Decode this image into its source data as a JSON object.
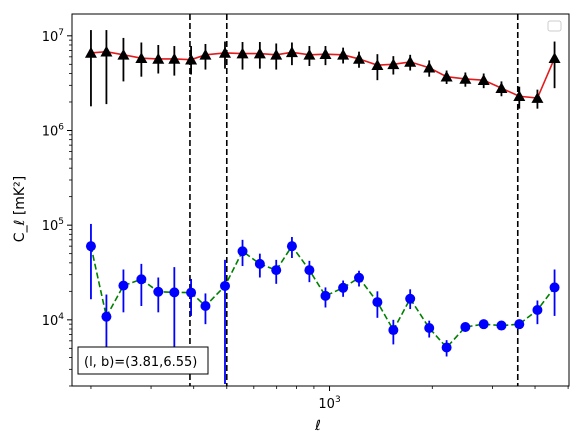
{
  "chart_data": {
    "type": "scatter",
    "title": "",
    "xlabel": "ℓ",
    "ylabel": "C_ℓ [mK²]",
    "x_scale": "log",
    "y_scale": "log",
    "xlim": [
      176,
      5030
    ],
    "ylim": [
      2000,
      17000000
    ],
    "x_tick_labels": [
      {
        "value": 1000,
        "base": "10",
        "exp": "3"
      }
    ],
    "y_tick_labels": [
      {
        "value": 10000,
        "base": "10",
        "exp": "4"
      },
      {
        "value": 100000,
        "base": "10",
        "exp": "5"
      },
      {
        "value": 1000000,
        "base": "10",
        "exp": "6"
      },
      {
        "value": 10000000,
        "base": "10",
        "exp": "7"
      }
    ],
    "grid": false,
    "legend": "empty box top-right",
    "vertical_lines": [
      390,
      500,
      3560
    ],
    "annotation": "(l, b)=(3.81,6.55)",
    "series": [
      {
        "marker": "triangle",
        "marker_color": "#000000",
        "line_color": "#e41a1c",
        "line_style": "solid",
        "points": [
          {
            "x": 200,
            "y": 6600000,
            "lo": 1800000,
            "hi": 11500000
          },
          {
            "x": 222,
            "y": 6800000,
            "lo": 1900000,
            "hi": 11500000
          },
          {
            "x": 249,
            "y": 6300000,
            "lo": 3300000,
            "hi": 9500000
          },
          {
            "x": 281,
            "y": 5800000,
            "lo": 3700000,
            "hi": 8500000
          },
          {
            "x": 315,
            "y": 5700000,
            "lo": 4000000,
            "hi": 8000000
          },
          {
            "x": 351,
            "y": 5700000,
            "lo": 3800000,
            "hi": 7800000
          },
          {
            "x": 393,
            "y": 5600000,
            "lo": 3900000,
            "hi": 7800000
          },
          {
            "x": 433,
            "y": 6300000,
            "lo": 4400000,
            "hi": 8200000
          },
          {
            "x": 494,
            "y": 6600000,
            "lo": 4500000,
            "hi": 8700000
          },
          {
            "x": 556,
            "y": 6500000,
            "lo": 4400000,
            "hi": 8600000
          },
          {
            "x": 625,
            "y": 6500000,
            "lo": 4500000,
            "hi": 8600000
          },
          {
            "x": 698,
            "y": 6300000,
            "lo": 4400000,
            "hi": 8300000
          },
          {
            "x": 776,
            "y": 6700000,
            "lo": 4900000,
            "hi": 8500000
          },
          {
            "x": 873,
            "y": 6300000,
            "lo": 4800000,
            "hi": 7800000
          },
          {
            "x": 973,
            "y": 6400000,
            "lo": 4900000,
            "hi": 7800000
          },
          {
            "x": 1096,
            "y": 6300000,
            "lo": 5100000,
            "hi": 7500000
          },
          {
            "x": 1220,
            "y": 5700000,
            "lo": 4600000,
            "hi": 6800000
          },
          {
            "x": 1381,
            "y": 4900000,
            "lo": 3400000,
            "hi": 6400000
          },
          {
            "x": 1538,
            "y": 5000000,
            "lo": 3900000,
            "hi": 6100000
          },
          {
            "x": 1723,
            "y": 5300000,
            "lo": 4300000,
            "hi": 6300000
          },
          {
            "x": 1959,
            "y": 4600000,
            "lo": 3700000,
            "hi": 5500000
          },
          {
            "x": 2203,
            "y": 3700000,
            "lo": 3100000,
            "hi": 4300000
          },
          {
            "x": 2500,
            "y": 3500000,
            "lo": 2900000,
            "hi": 4100000
          },
          {
            "x": 2829,
            "y": 3400000,
            "lo": 2800000,
            "hi": 4000000
          },
          {
            "x": 3189,
            "y": 2800000,
            "lo": 2300000,
            "hi": 3300000
          },
          {
            "x": 3597,
            "y": 2300000,
            "lo": 1700000,
            "hi": 2900000
          },
          {
            "x": 4065,
            "y": 2200000,
            "lo": 1700000,
            "hi": 2700000
          },
          {
            "x": 4563,
            "y": 5800000,
            "lo": 2800000,
            "hi": 8700000
          }
        ]
      },
      {
        "marker": "circle",
        "marker_color": "#0000ff",
        "line_color": "#008000",
        "line_style": "dashed",
        "points": [
          {
            "x": 200,
            "y": 60000,
            "lo": 16500,
            "hi": 103000
          },
          {
            "x": 222,
            "y": 10800,
            "lo": 2800,
            "hi": 18500
          },
          {
            "x": 249,
            "y": 23000,
            "lo": 12000,
            "hi": 34000
          },
          {
            "x": 281,
            "y": 26800,
            "lo": 14000,
            "hi": 39000
          },
          {
            "x": 315,
            "y": 19800,
            "lo": 12000,
            "hi": 28000
          },
          {
            "x": 351,
            "y": 19500,
            "lo": 2700,
            "hi": 36000
          },
          {
            "x": 393,
            "y": 19400,
            "lo": 11000,
            "hi": 27000
          },
          {
            "x": 433,
            "y": 14000,
            "lo": 9000,
            "hi": 19000
          },
          {
            "x": 494,
            "y": 22800,
            "lo": 2100,
            "hi": 43000
          },
          {
            "x": 556,
            "y": 53000,
            "lo": 37000,
            "hi": 70000
          },
          {
            "x": 625,
            "y": 39000,
            "lo": 28000,
            "hi": 50000
          },
          {
            "x": 698,
            "y": 33500,
            "lo": 24000,
            "hi": 43000
          },
          {
            "x": 776,
            "y": 60000,
            "lo": 45000,
            "hi": 75000
          },
          {
            "x": 873,
            "y": 33500,
            "lo": 25000,
            "hi": 42000
          },
          {
            "x": 973,
            "y": 17900,
            "lo": 13500,
            "hi": 22000
          },
          {
            "x": 1096,
            "y": 21800,
            "lo": 17500,
            "hi": 26000
          },
          {
            "x": 1220,
            "y": 27800,
            "lo": 22500,
            "hi": 33000
          },
          {
            "x": 1381,
            "y": 15400,
            "lo": 10500,
            "hi": 20000
          },
          {
            "x": 1538,
            "y": 7800,
            "lo": 5500,
            "hi": 10000
          },
          {
            "x": 1723,
            "y": 16700,
            "lo": 13000,
            "hi": 21000
          },
          {
            "x": 1959,
            "y": 8200,
            "lo": 6500,
            "hi": 9800
          },
          {
            "x": 2203,
            "y": 5100,
            "lo": 4100,
            "hi": 6100
          },
          {
            "x": 2500,
            "y": 8400,
            "lo": 7500,
            "hi": 9300
          },
          {
            "x": 2829,
            "y": 9000,
            "lo": 8300,
            "hi": 9800
          },
          {
            "x": 3189,
            "y": 8700,
            "lo": 7900,
            "hi": 9600
          },
          {
            "x": 3597,
            "y": 9000,
            "lo": 8000,
            "hi": 10000
          },
          {
            "x": 4065,
            "y": 12700,
            "lo": 9000,
            "hi": 16000
          },
          {
            "x": 4563,
            "y": 22000,
            "lo": 11000,
            "hi": 34000
          }
        ]
      }
    ]
  }
}
